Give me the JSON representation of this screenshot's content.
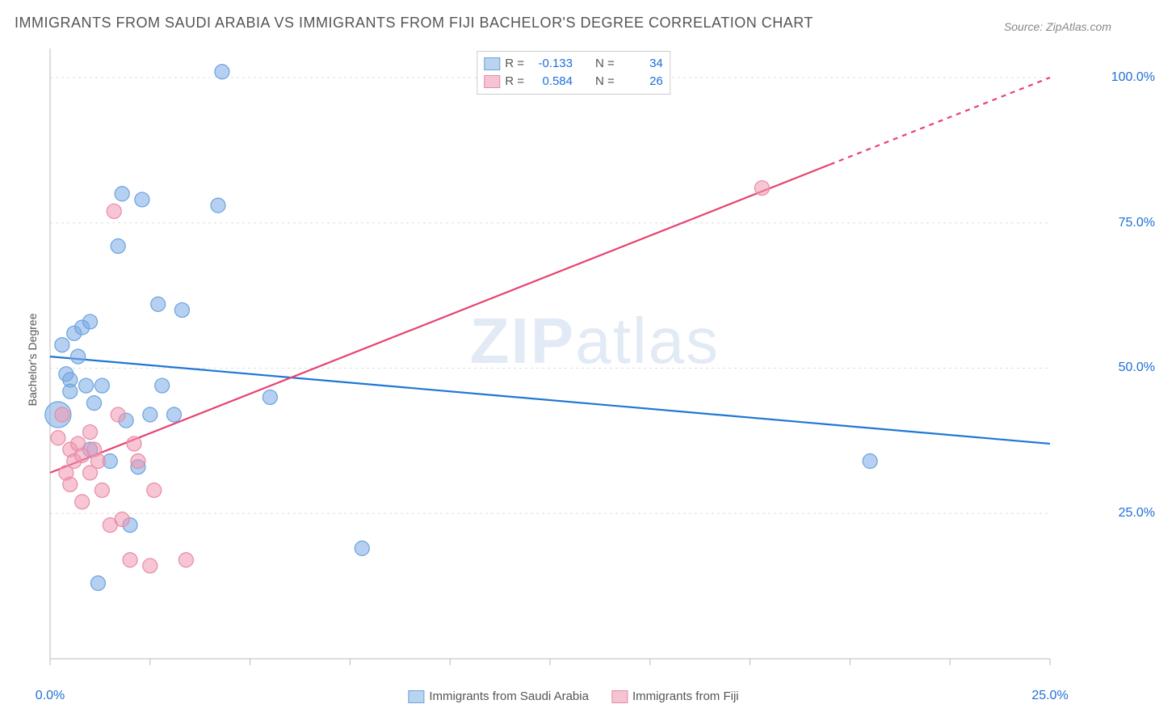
{
  "title": "IMMIGRANTS FROM SAUDI ARABIA VS IMMIGRANTS FROM FIJI BACHELOR'S DEGREE CORRELATION CHART",
  "source": "Source: ZipAtlas.com",
  "watermark_bold": "ZIP",
  "watermark_rest": "atlas",
  "y_axis_label": "Bachelor's Degree",
  "chart": {
    "type": "scatter",
    "background_color": "#ffffff",
    "grid_color": "#dddddd",
    "axis_color": "#bbbbbb",
    "xlim": [
      0,
      25
    ],
    "ylim": [
      0,
      105
    ],
    "x_ticks": [
      0,
      2.5,
      5,
      7.5,
      10,
      12.5,
      15,
      17.5,
      20,
      22.5,
      25
    ],
    "x_tick_labels": [
      {
        "pos": 0,
        "label": "0.0%"
      },
      {
        "pos": 25,
        "label": "25.0%"
      }
    ],
    "y_ticks": [
      25,
      50,
      75,
      100
    ],
    "y_tick_labels": [
      {
        "pos": 25,
        "label": "25.0%"
      },
      {
        "pos": 50,
        "label": "50.0%"
      },
      {
        "pos": 75,
        "label": "75.0%"
      },
      {
        "pos": 100,
        "label": "100.0%"
      }
    ],
    "series": [
      {
        "name": "Immigrants from Saudi Arabia",
        "fill_color": "rgba(120, 170, 230, 0.55)",
        "stroke_color": "#6aa3dd",
        "line_color": "#1f77d4",
        "swatch_fill": "#b9d4ef",
        "swatch_border": "#6aa3dd",
        "R_label": "R = ",
        "R_value": "-0.133",
        "N_label": "N = ",
        "N_value": "34",
        "marker_radius": 9,
        "line_width": 2.2,
        "regression": {
          "x1": 0,
          "y1": 52,
          "x2": 25,
          "y2": 37
        },
        "points": [
          {
            "x": 0.2,
            "y": 42,
            "r": 16
          },
          {
            "x": 0.3,
            "y": 54
          },
          {
            "x": 0.4,
            "y": 49
          },
          {
            "x": 0.5,
            "y": 48
          },
          {
            "x": 0.5,
            "y": 46
          },
          {
            "x": 0.6,
            "y": 56
          },
          {
            "x": 0.7,
            "y": 52
          },
          {
            "x": 0.8,
            "y": 57
          },
          {
            "x": 0.9,
            "y": 47
          },
          {
            "x": 1.0,
            "y": 58
          },
          {
            "x": 1.0,
            "y": 36
          },
          {
            "x": 1.1,
            "y": 44
          },
          {
            "x": 1.2,
            "y": 13
          },
          {
            "x": 1.3,
            "y": 47
          },
          {
            "x": 1.5,
            "y": 34
          },
          {
            "x": 1.7,
            "y": 71
          },
          {
            "x": 1.8,
            "y": 80
          },
          {
            "x": 1.9,
            "y": 41
          },
          {
            "x": 2.0,
            "y": 23
          },
          {
            "x": 2.2,
            "y": 33
          },
          {
            "x": 2.3,
            "y": 79
          },
          {
            "x": 2.5,
            "y": 42
          },
          {
            "x": 2.7,
            "y": 61
          },
          {
            "x": 2.8,
            "y": 47
          },
          {
            "x": 3.1,
            "y": 42
          },
          {
            "x": 3.3,
            "y": 60
          },
          {
            "x": 4.2,
            "y": 78
          },
          {
            "x": 4.3,
            "y": 101
          },
          {
            "x": 5.5,
            "y": 45
          },
          {
            "x": 7.8,
            "y": 19
          },
          {
            "x": 20.5,
            "y": 34
          }
        ]
      },
      {
        "name": "Immigrants from Fiji",
        "fill_color": "rgba(240, 150, 175, 0.55)",
        "stroke_color": "#e88ba5",
        "line_color": "#e8436f",
        "swatch_fill": "#f6c3d2",
        "swatch_border": "#e88ba5",
        "R_label": "R = ",
        "R_value": "0.584",
        "N_label": "N = ",
        "N_value": "26",
        "marker_radius": 9,
        "line_width": 2.2,
        "regression": {
          "x1": 0,
          "y1": 32,
          "x2": 25,
          "y2": 100
        },
        "dash_from_x": 19.5,
        "points": [
          {
            "x": 0.2,
            "y": 38
          },
          {
            "x": 0.3,
            "y": 42
          },
          {
            "x": 0.4,
            "y": 32
          },
          {
            "x": 0.5,
            "y": 36
          },
          {
            "x": 0.5,
            "y": 30
          },
          {
            "x": 0.6,
            "y": 34
          },
          {
            "x": 0.7,
            "y": 37
          },
          {
            "x": 0.8,
            "y": 35
          },
          {
            "x": 0.8,
            "y": 27
          },
          {
            "x": 1.0,
            "y": 39
          },
          {
            "x": 1.0,
            "y": 32
          },
          {
            "x": 1.1,
            "y": 36
          },
          {
            "x": 1.2,
            "y": 34
          },
          {
            "x": 1.3,
            "y": 29
          },
          {
            "x": 1.5,
            "y": 23
          },
          {
            "x": 1.6,
            "y": 77
          },
          {
            "x": 1.7,
            "y": 42
          },
          {
            "x": 1.8,
            "y": 24
          },
          {
            "x": 2.0,
            "y": 17
          },
          {
            "x": 2.1,
            "y": 37
          },
          {
            "x": 2.2,
            "y": 34
          },
          {
            "x": 2.5,
            "y": 16
          },
          {
            "x": 2.6,
            "y": 29
          },
          {
            "x": 3.4,
            "y": 17
          },
          {
            "x": 17.8,
            "y": 81
          }
        ]
      }
    ]
  },
  "bottom_legend": [
    {
      "name": "Immigrants from Saudi Arabia",
      "series": 0
    },
    {
      "name": "Immigrants from Fiji",
      "series": 1
    }
  ]
}
